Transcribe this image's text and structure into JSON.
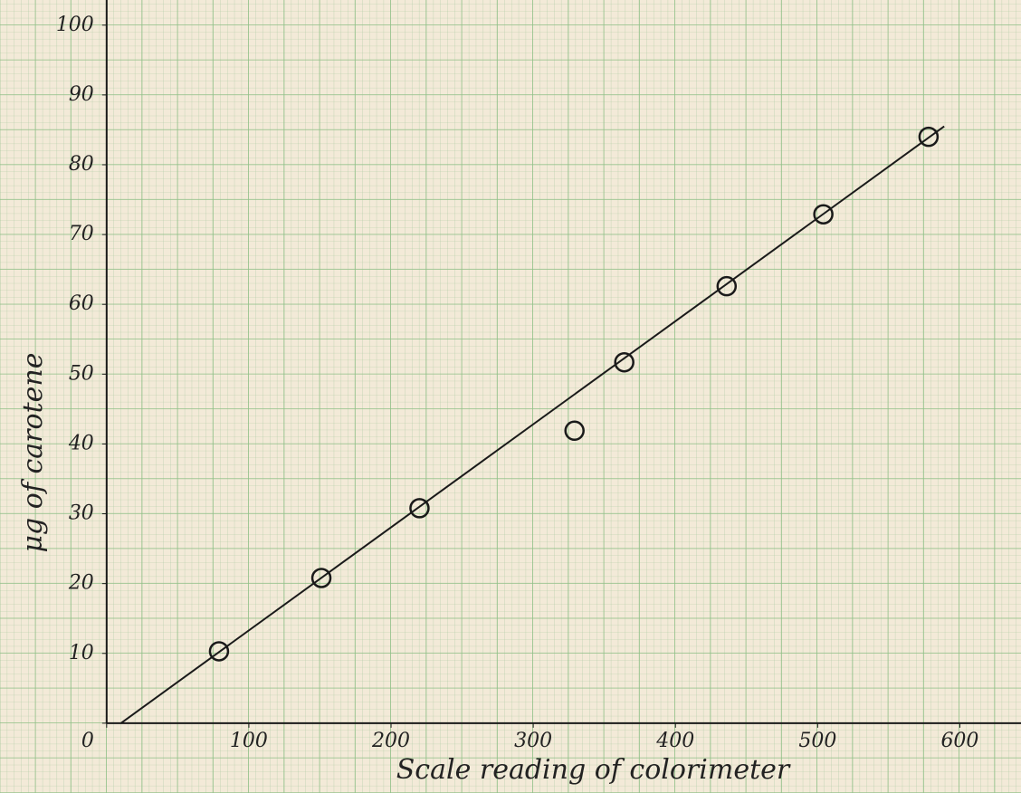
{
  "chart_data": {
    "type": "scatter",
    "x_label": "Scale reading of colorimeter",
    "y_label": "μg of carotene",
    "x": [
      79,
      151,
      220,
      329,
      364,
      436,
      504,
      578
    ],
    "values": [
      10.3,
      20.8,
      30.8,
      41.9,
      51.7,
      62.6,
      72.9,
      84.0
    ],
    "fit_line": {
      "x": [
        10,
        589
      ],
      "values": [
        0,
        85.5
      ]
    },
    "xlim": [
      -75,
      643
    ],
    "ylim": [
      -10,
      103.6
    ],
    "xticks": [
      0,
      100,
      200,
      300,
      400,
      500,
      600
    ],
    "yticks": [
      0,
      10,
      20,
      30,
      40,
      50,
      60,
      70,
      80,
      90,
      100
    ],
    "color": "#1a1a1a"
  }
}
